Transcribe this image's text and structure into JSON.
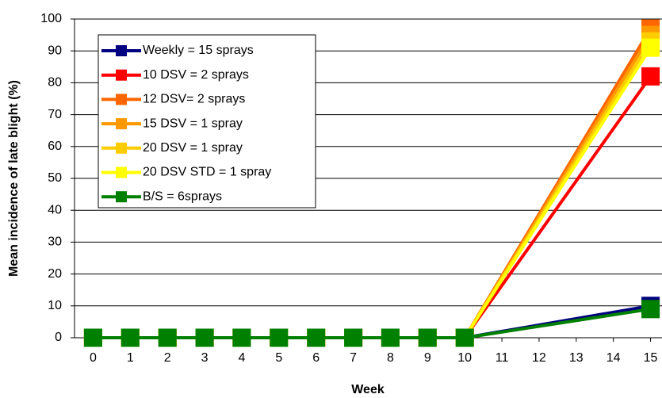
{
  "chart_data": {
    "type": "line",
    "xlabel": "Week",
    "ylabel": "Mean incidence of late blight (%)",
    "x": [
      0,
      1,
      2,
      3,
      4,
      5,
      6,
      7,
      8,
      9,
      10,
      15
    ],
    "xlim": [
      -0.5,
      15.5
    ],
    "xticks": [
      0,
      1,
      2,
      3,
      4,
      5,
      6,
      7,
      8,
      9,
      10,
      11,
      12,
      13,
      14,
      15
    ],
    "ylim": [
      0,
      100
    ],
    "yticks": [
      0,
      10,
      20,
      30,
      40,
      50,
      60,
      70,
      80,
      90,
      100
    ],
    "grid": true,
    "legend": "upper left",
    "series": [
      {
        "name": "Weekly = 15 sprays",
        "color": "#000080",
        "values": [
          0,
          0,
          0,
          0,
          0,
          0,
          0,
          0,
          0,
          0,
          0,
          10
        ]
      },
      {
        "name": "10 DSV = 2 sprays",
        "color": "#ff0000",
        "values": [
          0,
          0,
          0,
          0,
          0,
          0,
          0,
          0,
          0,
          0,
          0,
          82
        ]
      },
      {
        "name": "12 DSV= 2 sprays",
        "color": "#ff6600",
        "values": [
          0,
          0,
          0,
          0,
          0,
          0,
          0,
          0,
          0,
          0,
          0,
          97
        ]
      },
      {
        "name": "15 DSV = 1 spray",
        "color": "#ff9900",
        "values": [
          0,
          0,
          0,
          0,
          0,
          0,
          0,
          0,
          0,
          0,
          0,
          95
        ]
      },
      {
        "name": "20 DSV = 1 spray",
        "color": "#ffcc00",
        "values": [
          0,
          0,
          0,
          0,
          0,
          0,
          0,
          0,
          0,
          0,
          0,
          93
        ]
      },
      {
        "name": "20 DSV STD = 1 spray",
        "color": "#ffff00",
        "values": [
          0,
          0,
          0,
          0,
          0,
          0,
          0,
          0,
          0,
          0,
          0,
          91
        ]
      },
      {
        "name": "B/S = 6sprays",
        "color": "#008000",
        "values": [
          0,
          0,
          0,
          0,
          0,
          0,
          0,
          0,
          0,
          0,
          0,
          9
        ]
      }
    ]
  }
}
